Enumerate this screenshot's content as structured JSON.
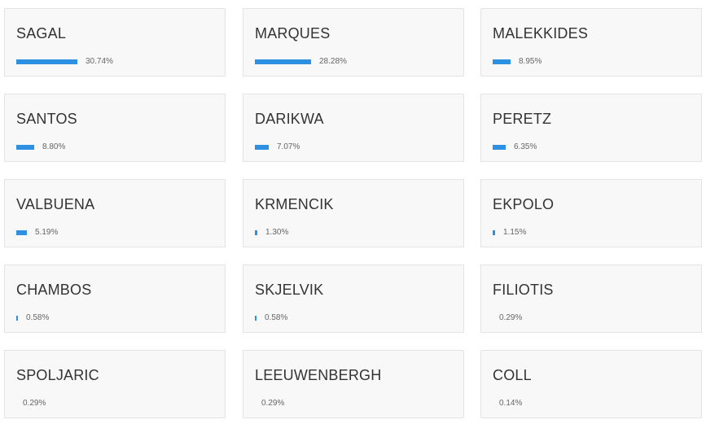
{
  "colors": {
    "bar": "#2e90e0",
    "card_bg": "#f8f8f8",
    "card_border": "#e4e4e4",
    "text": "#333333",
    "muted": "#666666"
  },
  "results": [
    {
      "name": "SAGAL",
      "percent_label": "30.74%",
      "share": 0.3074
    },
    {
      "name": "MARQUES",
      "percent_label": "28.28%",
      "share": 0.2828
    },
    {
      "name": "MALEKKIDES",
      "percent_label": "8.95%",
      "share": 0.0895
    },
    {
      "name": "SANTOS",
      "percent_label": "8.80%",
      "share": 0.088
    },
    {
      "name": "DARIKWA",
      "percent_label": "7.07%",
      "share": 0.0707
    },
    {
      "name": "PERETZ",
      "percent_label": "6.35%",
      "share": 0.0635
    },
    {
      "name": "VALBUENA",
      "percent_label": "5.19%",
      "share": 0.0519
    },
    {
      "name": "KRMENCIK",
      "percent_label": "1.30%",
      "share": 0.013
    },
    {
      "name": "EKPOLO",
      "percent_label": "1.15%",
      "share": 0.0115
    },
    {
      "name": "CHAMBOS",
      "percent_label": "0.58%",
      "share": 0.0058
    },
    {
      "name": "SKJELVIK",
      "percent_label": "0.58%",
      "share": 0.0058
    },
    {
      "name": "FILIOTIS",
      "percent_label": "0.29%",
      "share": 0.0029
    },
    {
      "name": "SPOLJARIC",
      "percent_label": "0.29%",
      "share": 0.0029
    },
    {
      "name": "LEEUWENBERGH",
      "percent_label": "0.29%",
      "share": 0.0029
    },
    {
      "name": "COLL",
      "percent_label": "0.14%",
      "share": 0.0014
    }
  ]
}
